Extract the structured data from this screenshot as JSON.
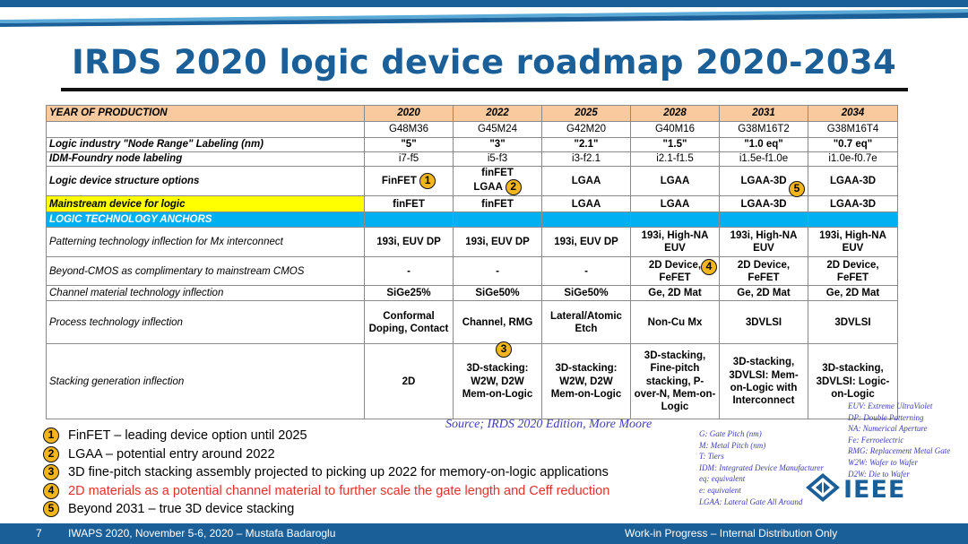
{
  "title": "IRDS 2020 logic device roadmap 2020-2034",
  "header": {
    "label": "YEAR OF PRODUCTION",
    "years": [
      "2020",
      "2022",
      "2025",
      "2028",
      "2031",
      "2034"
    ]
  },
  "node_codes": [
    "G48M36",
    "G45M24",
    "G42M20",
    "G40M16",
    "G38M16T2",
    "G38M16T4"
  ],
  "rows": {
    "node_range": {
      "label": "Logic industry \"Node Range\" Labeling (nm)",
      "values": [
        "\"5\"",
        "\"3\"",
        "\"2.1\"",
        "\"1.5\"",
        "\"1.0 eq\"",
        "\"0.7 eq\""
      ]
    },
    "idm_foundry": {
      "label": "IDM-Foundry node labeling",
      "values": [
        "i7-f5",
        "i5-f3",
        "i3-f2.1",
        "i2.1-f1.5",
        "i1.5e-f1.0e",
        "i1.0e-f0.7e"
      ]
    },
    "structure": {
      "label": "Logic device structure options",
      "values": [
        "FinFET",
        "finFET",
        "LGAA",
        "LGAA",
        "LGAA-3D",
        "LGAA-3D"
      ],
      "value_2022_line2": "LGAA"
    },
    "mainstream": {
      "label": "Mainstream device for logic",
      "values": [
        "finFET",
        "finFET",
        "LGAA",
        "LGAA",
        "LGAA-3D",
        "LGAA-3D"
      ]
    },
    "anchors": {
      "label": "LOGIC TECHNOLOGY ANCHORS"
    },
    "patterning": {
      "label": "Patterning  technology inflection for Mx interconnect",
      "values": [
        "193i, EUV DP",
        "193i, EUV DP",
        "193i, EUV DP",
        "193i, High-NA EUV",
        "193i, High-NA EUV",
        "193i, High-NA EUV"
      ]
    },
    "beyond_cmos": {
      "label": "Beyond-CMOS as complimentary to mainstream CMOS",
      "values": [
        "-",
        "-",
        "-",
        "2D Device, FeFET",
        "2D Device, FeFET",
        "2D Device, FeFET"
      ]
    },
    "channel": {
      "label": "Channel material technology inflection",
      "values": [
        "SiGe25%",
        "SiGe50%",
        "SiGe50%",
        "Ge, 2D Mat",
        "Ge, 2D Mat",
        "Ge, 2D Mat"
      ]
    },
    "process": {
      "label": "Process technology inflection",
      "values": [
        "Conformal Doping, Contact",
        "Channel, RMG",
        "Lateral/Atomic Etch",
        "Non-Cu Mx",
        "3DVLSI",
        "3DVLSI"
      ]
    },
    "stacking": {
      "label": "Stacking generation inflection",
      "values": [
        "2D",
        "3D-stacking: W2W, D2W Mem-on-Logic",
        "3D-stacking: W2W, D2W Mem-on-Logic",
        "3D-stacking, Fine-pitch stacking, P-over-N, Mem-on-Logic",
        "3D-stacking, 3DVLSI: Mem-on-Logic with Interconnect",
        "3D-stacking, 3DVLSI: Logic-on-Logic"
      ]
    }
  },
  "badges": [
    "1",
    "2",
    "3",
    "4",
    "5"
  ],
  "source": "Source; IRDS 2020 Edition, More Moore",
  "notes": [
    {
      "num": "1",
      "text": "FinFET – leading device option until 2025"
    },
    {
      "num": "2",
      "text": "LGAA – potential entry around 2022"
    },
    {
      "num": "3",
      "text": "3D fine-pitch stacking assembly projected to picking up 2022 for memory-on-logic applications"
    },
    {
      "num": "4",
      "text": "2D materials as a potential channel material to further scale the gate length and Ceff reduction"
    },
    {
      "num": "5",
      "text": "Beyond 2031 – true 3D device stacking"
    }
  ],
  "abbreviations_left": [
    "G: Gate Pitch (nm)",
    "M: Metal Pitch (nm)",
    "T: Tiers",
    "IDM: Integrated Device Manufacturer",
    "eq: equivalent",
    "e: equivalent",
    "LGAA: Lateral Gate All Around"
  ],
  "abbreviations_right": [
    "EUV: Extreme UltraViolet",
    "DP: Double Patterning",
    "NA: Numerical Aperture",
    "Fe: Ferroelectric",
    "RMG: Replacement Metal Gate",
    "W2W: Wafer to Wafer",
    "D2W: Die to Wafer"
  ],
  "logo": {
    "text": "IEEE",
    "icon": "ieee-diamond-icon"
  },
  "footer": {
    "page_number": "7",
    "conference": "IWAPS 2020, November 5-6, 2020 – Mustafa Badaroglu",
    "notice": "Work-in Progress – Internal Distribution Only"
  },
  "colors": {
    "title": "#1b5f99",
    "year_row": "#f8ca9e",
    "mainstream_label": "#ffff00",
    "anchor_row": "#00b0f0",
    "badge": "#f2b51d",
    "red_note": "#e5312e",
    "source_text": "#3f3fb5",
    "footer": "#1b5f99"
  }
}
